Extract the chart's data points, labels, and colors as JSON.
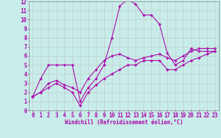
{
  "xlabel": "Windchill (Refroidissement éolien,°C)",
  "xlim": [
    -0.5,
    23.5
  ],
  "ylim": [
    0,
    12
  ],
  "xticks": [
    0,
    1,
    2,
    3,
    4,
    5,
    6,
    7,
    8,
    9,
    10,
    11,
    12,
    13,
    14,
    15,
    16,
    17,
    18,
    19,
    20,
    21,
    22,
    23
  ],
  "yticks": [
    0,
    1,
    2,
    3,
    4,
    5,
    6,
    7,
    8,
    9,
    10,
    11,
    12
  ],
  "bg_color": "#c8ece9",
  "line_color": "#aa00aa",
  "grid_color": "#bbbbbb",
  "line1_x": [
    0,
    1,
    2,
    3,
    4,
    5,
    6,
    7,
    8,
    9,
    10,
    11,
    12,
    13,
    14,
    15,
    16,
    17,
    18,
    19,
    20,
    21,
    22,
    23
  ],
  "line1_y": [
    1.5,
    3.5,
    5.0,
    5.0,
    5.0,
    5.0,
    1.0,
    2.5,
    3.5,
    5.0,
    8.0,
    11.5,
    12.2,
    11.7,
    10.5,
    10.5,
    9.5,
    6.3,
    5.0,
    5.5,
    6.8,
    6.5,
    6.5,
    6.5
  ],
  "line2_x": [
    0,
    1,
    2,
    3,
    4,
    5,
    6,
    7,
    8,
    9,
    10,
    11,
    12,
    13,
    14,
    15,
    16,
    17,
    18,
    19,
    20,
    21,
    22,
    23
  ],
  "line2_y": [
    1.5,
    2.0,
    3.0,
    3.3,
    2.8,
    2.5,
    2.0,
    3.5,
    4.5,
    5.5,
    6.0,
    6.2,
    5.8,
    5.5,
    5.8,
    6.0,
    6.2,
    5.8,
    5.5,
    6.0,
    6.5,
    6.8,
    6.8,
    6.8
  ],
  "line3_x": [
    0,
    1,
    2,
    3,
    4,
    5,
    6,
    7,
    8,
    9,
    10,
    11,
    12,
    13,
    14,
    15,
    16,
    17,
    18,
    19,
    20,
    21,
    22,
    23
  ],
  "line3_y": [
    1.5,
    2.0,
    2.5,
    3.0,
    2.5,
    2.0,
    0.5,
    2.0,
    2.8,
    3.5,
    4.0,
    4.5,
    5.0,
    5.0,
    5.5,
    5.5,
    5.5,
    4.5,
    4.5,
    5.0,
    5.5,
    5.8,
    6.2,
    6.5
  ],
  "marker": "+",
  "markersize": 3,
  "linewidth": 0.8,
  "tick_fontsize": 5.5,
  "xlabel_fontsize": 5.5
}
